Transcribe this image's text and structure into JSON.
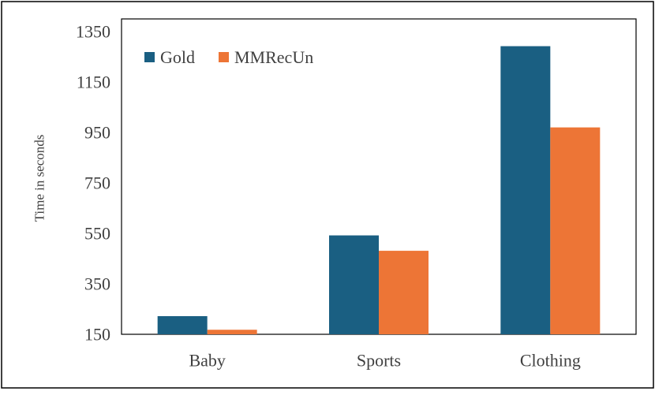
{
  "chart_data": {
    "type": "bar",
    "categories": [
      "Baby",
      "Sports",
      "Clothing"
    ],
    "series": [
      {
        "name": "Gold",
        "values": [
          222,
          542,
          1292
        ],
        "color": "#1a5f82"
      },
      {
        "name": "MMRecUn",
        "values": [
          168,
          481,
          970
        ],
        "color": "#ed7536"
      }
    ],
    "ylabel": "Time in seconds",
    "xlabel": "",
    "title": "",
    "ylim": [
      150,
      1350
    ],
    "yticks": [
      "150",
      "350",
      "550",
      "750",
      "950",
      "1150",
      "1350"
    ],
    "grid": false,
    "legend": "top-left"
  }
}
